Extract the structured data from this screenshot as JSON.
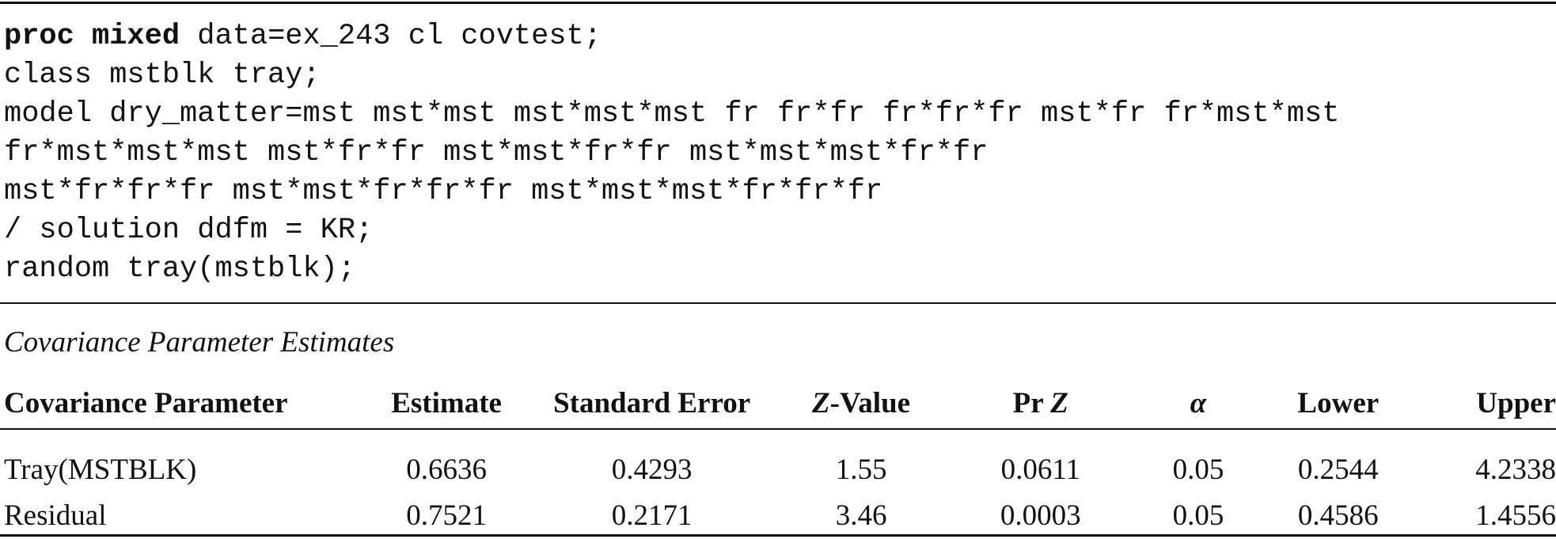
{
  "code": {
    "line1_keyword": "proc mixed",
    "line1_rest": " data=ex_243 cl covtest;",
    "lines": [
      "class mstblk tray;",
      "model dry_matter=mst mst*mst mst*mst*mst fr fr*fr fr*fr*fr mst*fr fr*mst*mst",
      "fr*mst*mst*mst mst*fr*fr mst*mst*fr*fr mst*mst*mst*fr*fr",
      "mst*fr*fr*fr mst*mst*fr*fr*fr mst*mst*mst*fr*fr*fr",
      "/ solution ddfm = KR;",
      "random tray(mstblk);"
    ]
  },
  "table": {
    "caption": "Covariance Parameter Estimates",
    "headers": {
      "param": "Covariance Parameter",
      "estimate": "Estimate",
      "stderr": "Standard Error",
      "zvalue_italic": "Z",
      "zvalue_rest": "-Value",
      "prz_prefix": "Pr ",
      "prz_italic": "Z",
      "alpha": "α",
      "lower": "Lower",
      "upper": "Upper"
    },
    "rows": [
      [
        "Tray(MSTBLK)",
        "0.6636",
        "0.4293",
        "1.55",
        "0.0611",
        "0.05",
        "0.2544",
        "4.2338"
      ],
      [
        "Residual",
        "0.7521",
        "0.2171",
        "3.46",
        "0.0003",
        "0.05",
        "0.4586",
        "1.4556"
      ]
    ]
  }
}
